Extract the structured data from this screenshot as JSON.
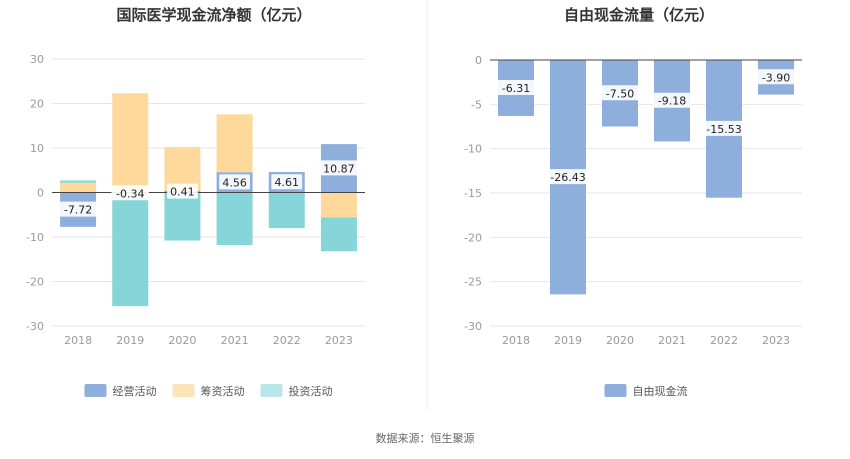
{
  "chart_data": [
    {
      "type": "bar",
      "stacked": true,
      "title": "国际医学现金流净额（亿元）",
      "categories": [
        "2018",
        "2019",
        "2020",
        "2021",
        "2022",
        "2023"
      ],
      "ylim": [
        -30,
        30
      ],
      "yticks": [
        30,
        20,
        10,
        0,
        -10,
        -20,
        -30
      ],
      "legend_position": "bottom",
      "grid": true,
      "series": [
        {
          "name": "经营活动",
          "color": "#8eaedc",
          "values": [
            -7.72,
            -0.34,
            0.41,
            4.56,
            4.61,
            10.87
          ],
          "labels": [
            "-7.72",
            "-0.34",
            "0.41",
            "4.56",
            "4.61",
            "10.87"
          ]
        },
        {
          "name": "筹资活动",
          "color": "#fed99b",
          "values": [
            2.2,
            22.3,
            9.8,
            13.0,
            0.0,
            -5.6
          ]
        },
        {
          "name": "投资活动",
          "color": "#86d5d8",
          "values": [
            0.5,
            -25.2,
            -10.8,
            -11.8,
            -8.0,
            -7.6
          ]
        }
      ]
    },
    {
      "type": "bar",
      "title": "自由现金流量（亿元）",
      "categories": [
        "2018",
        "2019",
        "2020",
        "2021",
        "2022",
        "2023"
      ],
      "ylim": [
        -30,
        0
      ],
      "yticks": [
        0,
        -5,
        -10,
        -15,
        -20,
        -25,
        -30
      ],
      "legend_position": "bottom",
      "grid": true,
      "series": [
        {
          "name": "自由现金流",
          "color": "#8eaedc",
          "values": [
            -6.31,
            -26.43,
            -7.5,
            -9.18,
            -15.53,
            -3.9
          ],
          "labels": [
            "-6.31",
            "-26.43",
            "-7.50",
            "-9.18",
            "-15.53",
            "-3.90"
          ]
        }
      ]
    }
  ],
  "legend_colors": {
    "经营活动": "#8eaedc",
    "筹资活动": "#fde3b8",
    "投资活动": "#b9e6e8",
    "自由现金流": "#8eaedc"
  },
  "source": "数据来源：恒生聚源"
}
